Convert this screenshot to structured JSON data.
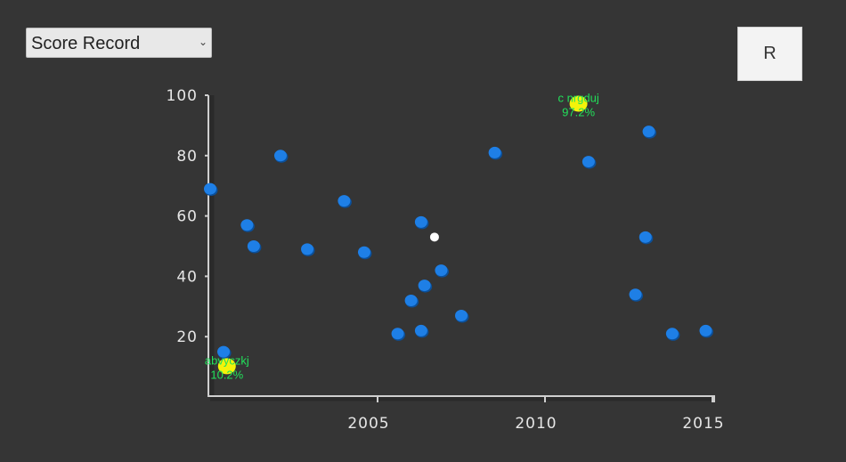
{
  "controls": {
    "dropdown_selected": "Score Record",
    "dropdown_icon": "chevron-down-icon",
    "reset_label": "R"
  },
  "chart_data": {
    "type": "scatter",
    "title": "",
    "xlabel": "",
    "ylabel": "",
    "xlim": [
      2000,
      2015
    ],
    "ylim": [
      0,
      100
    ],
    "x_ticks": [
      "2005",
      "2010",
      "2015"
    ],
    "y_ticks": [
      "20",
      "40",
      "60",
      "80",
      "100"
    ],
    "colors": {
      "point": "#1e7fe6",
      "highlight": "#f3f30a",
      "hovered": "#ffffff",
      "annotation": "#22e05a"
    },
    "points": [
      {
        "x": 2000.0,
        "y": 69
      },
      {
        "x": 2000.4,
        "y": 15
      },
      {
        "x": 2001.1,
        "y": 57
      },
      {
        "x": 2001.3,
        "y": 50
      },
      {
        "x": 2002.1,
        "y": 80
      },
      {
        "x": 2002.9,
        "y": 49
      },
      {
        "x": 2004.0,
        "y": 65
      },
      {
        "x": 2004.6,
        "y": 48
      },
      {
        "x": 2005.6,
        "y": 21
      },
      {
        "x": 2006.0,
        "y": 32
      },
      {
        "x": 2006.3,
        "y": 58
      },
      {
        "x": 2006.3,
        "y": 22
      },
      {
        "x": 2006.4,
        "y": 37
      },
      {
        "x": 2006.9,
        "y": 42
      },
      {
        "x": 2007.5,
        "y": 27
      },
      {
        "x": 2008.5,
        "y": 81
      },
      {
        "x": 2011.3,
        "y": 78
      },
      {
        "x": 2012.7,
        "y": 34
      },
      {
        "x": 2013.0,
        "y": 53
      },
      {
        "x": 2013.1,
        "y": 88
      },
      {
        "x": 2013.8,
        "y": 21
      },
      {
        "x": 2014.8,
        "y": 22
      }
    ],
    "highlighted": [
      {
        "x": 2000.5,
        "y": 10.2,
        "label": "abvyczkj",
        "value_label": "10.2%"
      },
      {
        "x": 2011.0,
        "y": 97.2,
        "label": "c nrgduj",
        "value_label": "97.2%"
      }
    ],
    "hovered_point": {
      "x": 2006.7,
      "y": 53
    }
  }
}
